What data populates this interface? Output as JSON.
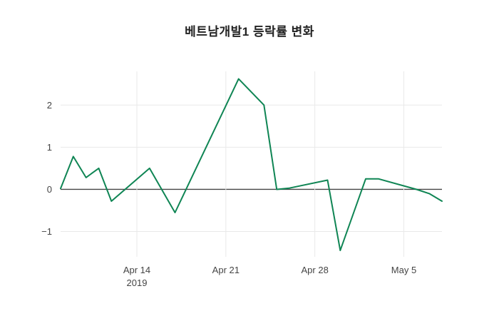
{
  "chart_data": {
    "type": "line",
    "title": "베트남개발1 등락률 변화",
    "xlabel": "",
    "ylabel": "",
    "legend": "none",
    "grid": "on",
    "x_range": [
      "2019-04-08",
      "2019-05-08"
    ],
    "ylim": [
      -1.6,
      2.8
    ],
    "xticks": [
      {
        "date": "2019-04-14",
        "label": "Apr 14",
        "sublabel": "2019"
      },
      {
        "date": "2019-04-21",
        "label": "Apr 21",
        "sublabel": ""
      },
      {
        "date": "2019-04-28",
        "label": "Apr 28",
        "sublabel": ""
      },
      {
        "date": "2019-05-05",
        "label": "May 5",
        "sublabel": ""
      }
    ],
    "yticks": [
      {
        "value": -1,
        "label": "−1"
      },
      {
        "value": 0,
        "label": "0"
      },
      {
        "value": 1,
        "label": "1"
      },
      {
        "value": 2,
        "label": "2"
      }
    ],
    "series": [
      {
        "name": "베트남개발1 등락률",
        "points": [
          [
            "2019-04-08",
            0.02
          ],
          [
            "2019-04-09",
            0.78
          ],
          [
            "2019-04-10",
            0.28
          ],
          [
            "2019-04-11",
            0.5
          ],
          [
            "2019-04-12",
            -0.28
          ],
          [
            "2019-04-15",
            0.5
          ],
          [
            "2019-04-17",
            -0.55
          ],
          [
            "2019-04-22",
            2.62
          ],
          [
            "2019-04-24",
            2.0
          ],
          [
            "2019-04-25",
            0.0
          ],
          [
            "2019-04-26",
            0.03
          ],
          [
            "2019-04-29",
            0.22
          ],
          [
            "2019-04-30",
            -1.45
          ],
          [
            "2019-05-02",
            0.25
          ],
          [
            "2019-05-03",
            0.25
          ],
          [
            "2019-05-06",
            0.0
          ],
          [
            "2019-05-07",
            -0.1
          ],
          [
            "2019-05-08",
            -0.28
          ]
        ]
      }
    ],
    "colors": {
      "line": "#0f8554",
      "zeroline": "#444444",
      "grid": "#e9e9e9",
      "tick_text": "#444444",
      "title_text": "#222222",
      "background": "#ffffff"
    }
  }
}
